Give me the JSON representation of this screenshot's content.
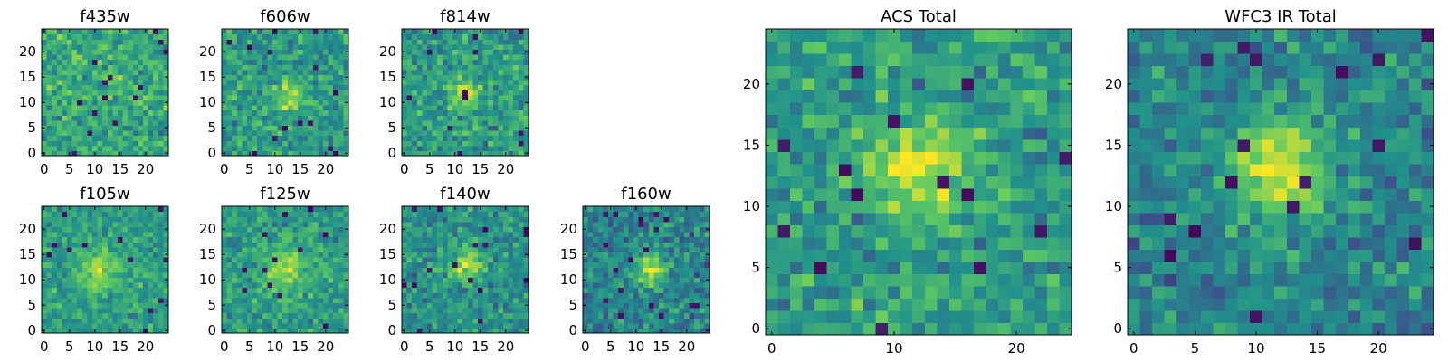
{
  "figure": {
    "colormap": "viridis",
    "colormap_stops": [
      "#440154",
      "#3b528b",
      "#21918c",
      "#5ec962",
      "#fde725"
    ]
  },
  "chart_data": [
    {
      "type": "heatmap",
      "title": "f435w",
      "grid_size": 24,
      "xlim": [
        0,
        24
      ],
      "ylim": [
        0,
        24
      ],
      "x_ticks": [
        0,
        5,
        10,
        15,
        20
      ],
      "y_ticks": [
        0,
        5,
        10,
        15,
        20
      ],
      "vmin": 0,
      "vmax": 1,
      "seed": 11,
      "base": 0.6,
      "noise": 0.3,
      "blob": {
        "center": [
          12,
          12
        ],
        "sigma": 3.0,
        "amp": 0.05
      },
      "dark_pixels": 14
    },
    {
      "type": "heatmap",
      "title": "f606w",
      "grid_size": 24,
      "xlim": [
        0,
        24
      ],
      "ylim": [
        0,
        24
      ],
      "x_ticks": [
        0,
        5,
        10,
        15,
        20
      ],
      "y_ticks": [
        0,
        5,
        10,
        15,
        20
      ],
      "vmin": 0,
      "vmax": 1,
      "seed": 23,
      "base": 0.55,
      "noise": 0.3,
      "blob": {
        "center": [
          13,
          11
        ],
        "sigma": 1.8,
        "amp": 0.35
      },
      "dark_pixels": 14
    },
    {
      "type": "heatmap",
      "title": "f814w",
      "grid_size": 24,
      "xlim": [
        0,
        24
      ],
      "ylim": [
        0,
        24
      ],
      "x_ticks": [
        0,
        5,
        10,
        15,
        20
      ],
      "y_ticks": [
        0,
        5,
        10,
        15,
        20
      ],
      "vmin": 0,
      "vmax": 1,
      "seed": 37,
      "base": 0.55,
      "noise": 0.3,
      "blob": {
        "center": [
          12,
          12
        ],
        "sigma": 1.8,
        "amp": 0.4
      },
      "dark_pixels": 12
    },
    {
      "type": "heatmap",
      "title": "f105w",
      "grid_size": 24,
      "xlim": [
        0,
        24
      ],
      "ylim": [
        0,
        24
      ],
      "x_ticks": [
        0,
        5,
        10,
        15,
        20
      ],
      "y_ticks": [
        0,
        5,
        10,
        15,
        20
      ],
      "vmin": 0,
      "vmax": 1,
      "seed": 41,
      "base": 0.55,
      "noise": 0.25,
      "blob": {
        "center": [
          11,
          12
        ],
        "sigma": 3.0,
        "amp": 0.3
      },
      "dark_pixels": 12
    },
    {
      "type": "heatmap",
      "title": "f125w",
      "grid_size": 24,
      "xlim": [
        0,
        24
      ],
      "ylim": [
        0,
        24
      ],
      "x_ticks": [
        0,
        5,
        10,
        15,
        20
      ],
      "y_ticks": [
        0,
        5,
        10,
        15,
        20
      ],
      "vmin": 0,
      "vmax": 1,
      "seed": 53,
      "base": 0.55,
      "noise": 0.25,
      "blob": {
        "center": [
          12,
          12
        ],
        "sigma": 3.0,
        "amp": 0.3
      },
      "dark_pixels": 12
    },
    {
      "type": "heatmap",
      "title": "f140w",
      "grid_size": 24,
      "xlim": [
        0,
        24
      ],
      "ylim": [
        0,
        24
      ],
      "x_ticks": [
        0,
        5,
        10,
        15,
        20
      ],
      "y_ticks": [
        0,
        5,
        10,
        15,
        20
      ],
      "vmin": 0,
      "vmax": 1,
      "seed": 67,
      "base": 0.5,
      "noise": 0.28,
      "blob": {
        "center": [
          12,
          13
        ],
        "sigma": 2.5,
        "amp": 0.35
      },
      "dark_pixels": 16
    },
    {
      "type": "heatmap",
      "title": "f160w",
      "grid_size": 24,
      "xlim": [
        0,
        24
      ],
      "ylim": [
        0,
        24
      ],
      "x_ticks": [
        0,
        5,
        10,
        15,
        20
      ],
      "y_ticks": [
        0,
        5,
        10,
        15,
        20
      ],
      "vmin": 0,
      "vmax": 1,
      "seed": 79,
      "base": 0.45,
      "noise": 0.3,
      "blob": {
        "center": [
          13,
          12
        ],
        "sigma": 2.2,
        "amp": 0.45
      },
      "dark_pixels": 18
    },
    {
      "type": "heatmap",
      "title": "ACS Total",
      "grid_size": 24,
      "xlim": [
        0,
        24
      ],
      "ylim": [
        0,
        24
      ],
      "x_ticks": [
        0,
        10,
        20
      ],
      "y_ticks": [
        0,
        5,
        10,
        15,
        20
      ],
      "vmin": 0,
      "vmax": 1,
      "seed": 97,
      "base": 0.55,
      "noise": 0.3,
      "blob": {
        "center": [
          12,
          13
        ],
        "sigma": 2.8,
        "amp": 0.4
      },
      "dark_pixels": 14
    },
    {
      "type": "heatmap",
      "title": "WFC3 IR Total",
      "grid_size": 24,
      "xlim": [
        0,
        24
      ],
      "ylim": [
        0,
        24
      ],
      "x_ticks": [
        0,
        5,
        10,
        15,
        20
      ],
      "y_ticks": [
        0,
        5,
        10,
        15,
        20
      ],
      "vmin": 0,
      "vmax": 1,
      "seed": 113,
      "base": 0.45,
      "noise": 0.28,
      "blob": {
        "center": [
          12,
          13
        ],
        "sigma": 2.8,
        "amp": 0.5
      },
      "dark_pixels": 16
    }
  ]
}
